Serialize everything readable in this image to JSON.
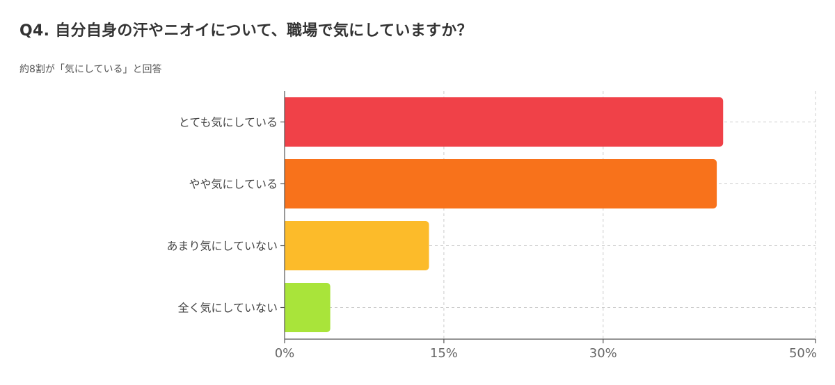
{
  "header": {
    "title": "Q4. 自分自身の汗やニオイについて、職場で気にしていますか？",
    "subtitle": "約8割が「気にしている」と回答"
  },
  "chart_data": {
    "type": "bar",
    "orientation": "horizontal",
    "title": "Q4. 自分自身の汗やニオイについて、職場で気にしていますか？",
    "subtitle": "約8割が「気にしている」と回答",
    "categories": [
      "とても気にしている",
      "やや気にしている",
      "あまり気にしていない",
      "全く気にしていない"
    ],
    "values": [
      41.3,
      40.7,
      13.6,
      4.3
    ],
    "unit": "%",
    "colors": [
      "#F04148",
      "#F8721B",
      "#FCBB2A",
      "#A9E43A"
    ],
    "xlim": [
      0,
      50
    ],
    "xticks": [
      0,
      15,
      30,
      50
    ],
    "xtick_labels": [
      "0%",
      "15%",
      "30%",
      "50%"
    ],
    "grid": true,
    "legend": "none"
  }
}
